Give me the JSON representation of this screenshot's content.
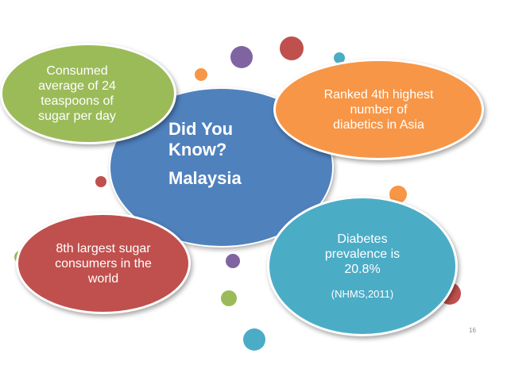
{
  "center": {
    "title_line1": "Did You",
    "title_line2": "Know?",
    "subtitle": "Malaysia"
  },
  "facts": {
    "green": [
      "Consumed",
      "average of 24",
      "teaspoons of",
      "sugar per day"
    ],
    "orange": [
      "Ranked 4th highest",
      "number of",
      "diabetics in Asia"
    ],
    "red": [
      "8th largest sugar",
      "consumers in the",
      "world"
    ],
    "teal": [
      "Diabetes",
      "prevalence is",
      "20.8%"
    ],
    "teal_source": "(NHMS,2011)"
  },
  "page_number": "16",
  "colors": {
    "center": "#4f81bd",
    "green": "#9bbb59",
    "orange": "#f79646",
    "red": "#c0504d",
    "teal": "#4bacc6",
    "purple": "#8064a2"
  }
}
